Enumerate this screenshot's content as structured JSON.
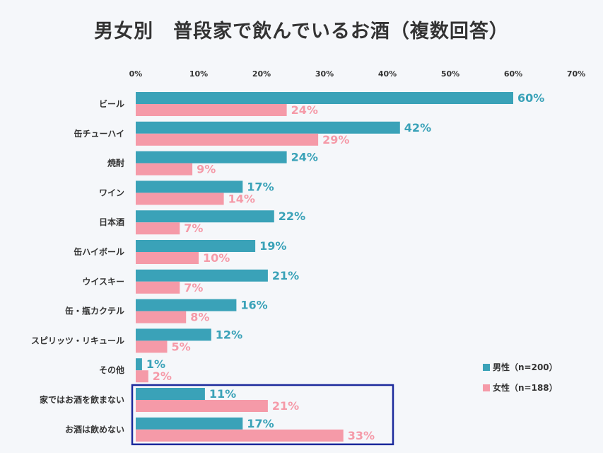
{
  "title": "男女別　普段家で飲んでいるお酒（複数回答）",
  "colors": {
    "male": "#3aa2b8",
    "female": "#f59aa8",
    "highlight_box": "#1c2a9c",
    "text": "#333333"
  },
  "chart_data": {
    "type": "bar",
    "orientation": "horizontal",
    "categories": [
      "ビール",
      "缶チューハイ",
      "焼酎",
      "ワイン",
      "日本酒",
      "缶ハイボール",
      "ウイスキー",
      "缶・瓶カクテル",
      "スピリッツ・リキュール",
      "その他",
      "家ではお酒を飲まない",
      "お酒は飲めない"
    ],
    "series": [
      {
        "name": "男性（n=200）",
        "values": [
          60,
          42,
          24,
          17,
          22,
          19,
          21,
          16,
          12,
          1,
          11,
          17
        ]
      },
      {
        "name": "女性（n=188）",
        "values": [
          24,
          29,
          9,
          14,
          7,
          10,
          7,
          8,
          5,
          2,
          21,
          33
        ]
      }
    ],
    "value_suffix": "%",
    "xlim": [
      0,
      70
    ],
    "xticks": [
      "0%",
      "10%",
      "20%",
      "30%",
      "40%",
      "50%",
      "60%",
      "70%"
    ],
    "legend_position": "bottom-right",
    "highlighted_categories": [
      "家ではお酒を飲まない",
      "お酒は飲めない"
    ]
  }
}
